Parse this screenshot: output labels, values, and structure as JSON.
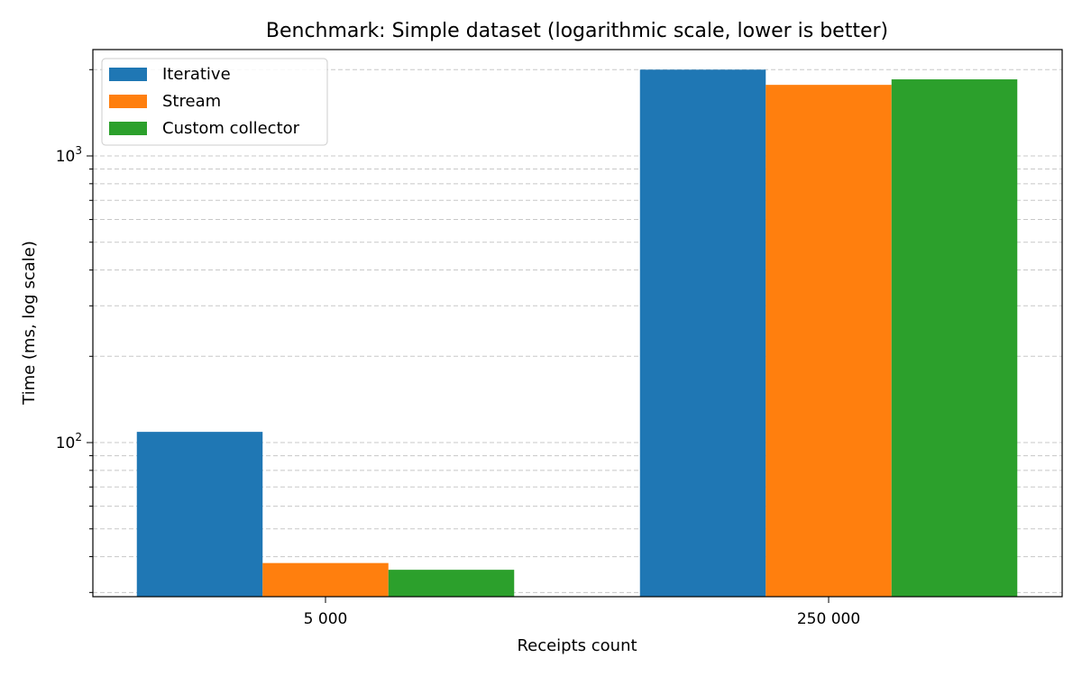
{
  "chart_data": {
    "type": "bar",
    "title": "Benchmark: Simple dataset (logarithmic scale, lower is better)",
    "xlabel": "Receipts count",
    "ylabel": "Time (ms, log scale)",
    "yscale": "log",
    "ylim": [
      29,
      2350
    ],
    "grid": "y (major and minor, dashed)",
    "legend_position": "top-left",
    "categories": [
      "5 000",
      "250 000"
    ],
    "series": [
      {
        "name": "Iterative",
        "color": "#1f77b4",
        "values": [
          109,
          2000
        ]
      },
      {
        "name": "Stream",
        "color": "#ff7f0e",
        "values": [
          38,
          1770
        ]
      },
      {
        "name": "Custom collector",
        "color": "#2ca02c",
        "values": [
          36,
          1850
        ]
      }
    ],
    "y_ticks": [
      {
        "value": 100,
        "label": "10",
        "exp": "2"
      },
      {
        "value": 1000,
        "label": "10",
        "exp": "3"
      }
    ]
  }
}
